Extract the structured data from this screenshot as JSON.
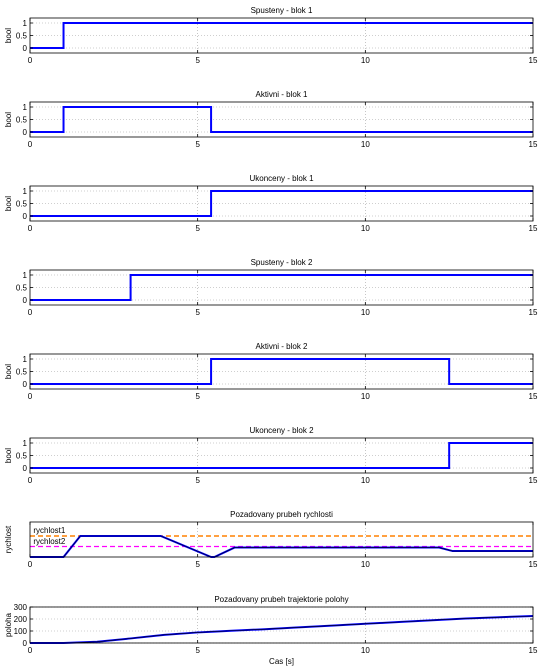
{
  "chart_data": [
    {
      "type": "line",
      "title": "Spusteny - blok 1",
      "ylabel": "bool",
      "xlabel": "",
      "xlim": [
        0,
        15
      ],
      "ylim": [
        -0.2,
        1.2
      ],
      "xticks": [
        "0",
        "5",
        "10",
        "15"
      ],
      "yticks": [
        "0",
        "0.5",
        "1"
      ],
      "grid": true,
      "series": [
        {
          "color": "#0000ff",
          "dash": "",
          "width": 2,
          "x": [
            0,
            1,
            1,
            15
          ],
          "y": [
            0,
            0,
            1,
            1
          ]
        }
      ]
    },
    {
      "type": "line",
      "title": "Aktivni - blok 1",
      "ylabel": "bool",
      "xlabel": "",
      "xlim": [
        0,
        15
      ],
      "ylim": [
        -0.2,
        1.2
      ],
      "xticks": [
        "0",
        "5",
        "10",
        "15"
      ],
      "yticks": [
        "0",
        "0.5",
        "1"
      ],
      "grid": true,
      "series": [
        {
          "color": "#0000ff",
          "dash": "",
          "width": 2,
          "x": [
            0,
            1,
            1,
            5.4,
            5.4,
            15
          ],
          "y": [
            0,
            0,
            1,
            1,
            0,
            0
          ]
        }
      ]
    },
    {
      "type": "line",
      "title": "Ukonceny - blok 1",
      "ylabel": "bool",
      "xlabel": "",
      "xlim": [
        0,
        15
      ],
      "ylim": [
        -0.2,
        1.2
      ],
      "xticks": [
        "0",
        "5",
        "10",
        "15"
      ],
      "yticks": [
        "0",
        "0.5",
        "1"
      ],
      "grid": true,
      "series": [
        {
          "color": "#0000ff",
          "dash": "",
          "width": 2,
          "x": [
            0,
            5.4,
            5.4,
            15
          ],
          "y": [
            0,
            0,
            1,
            1
          ]
        }
      ]
    },
    {
      "type": "line",
      "title": "Spusteny - blok 2",
      "ylabel": "",
      "xlabel": "",
      "xlim": [
        0,
        15
      ],
      "ylim": [
        -0.2,
        1.2
      ],
      "xticks": [
        "0",
        "5",
        "10",
        "15"
      ],
      "yticks": [
        "0",
        "0.5",
        "1"
      ],
      "grid": true,
      "series": [
        {
          "color": "#0000ff",
          "dash": "",
          "width": 2,
          "x": [
            0,
            3,
            3,
            15
          ],
          "y": [
            0,
            0,
            1,
            1
          ]
        }
      ]
    },
    {
      "type": "line",
      "title": "Aktivni - blok 2",
      "ylabel": "bool",
      "xlabel": "",
      "xlim": [
        0,
        15
      ],
      "ylim": [
        -0.2,
        1.2
      ],
      "xticks": [
        "0",
        "5",
        "10",
        "15"
      ],
      "yticks": [
        "0",
        "0.5",
        "1"
      ],
      "grid": true,
      "series": [
        {
          "color": "#0000ff",
          "dash": "",
          "width": 2,
          "x": [
            0,
            5.4,
            5.4,
            12.5,
            12.5,
            15
          ],
          "y": [
            0,
            0,
            1,
            1,
            0,
            0
          ]
        }
      ]
    },
    {
      "type": "line",
      "title": "Ukonceny - blok 2",
      "ylabel": "bool",
      "xlabel": "",
      "xlim": [
        0,
        15
      ],
      "ylim": [
        -0.2,
        1.2
      ],
      "xticks": [
        "0",
        "5",
        "10",
        "15"
      ],
      "yticks": [
        "0",
        "0.5",
        "1"
      ],
      "grid": true,
      "series": [
        {
          "color": "#0000ff",
          "dash": "",
          "width": 2,
          "x": [
            0,
            12.5,
            12.5,
            15
          ],
          "y": [
            0,
            0,
            1,
            1
          ]
        }
      ]
    },
    {
      "type": "line",
      "title": "Pozadovany prubeh rychlosti",
      "ylabel": "rychlost",
      "xlabel": "",
      "xlim": [
        0,
        15
      ],
      "ylim": [
        0,
        1
      ],
      "xticks": [
        "0",
        "5",
        "10",
        "15"
      ],
      "yticks": [],
      "grid": true,
      "annotations": [
        {
          "text": "rychlost1",
          "x": 0.1,
          "y": 0.68
        },
        {
          "text": "rychlost2",
          "x": 0.1,
          "y": 0.37
        }
      ],
      "series": [
        {
          "color": "#ff8000",
          "dash": "5,3",
          "width": 1.5,
          "x": [
            0,
            15
          ],
          "y": [
            0.6,
            0.6
          ]
        },
        {
          "color": "#ff00ff",
          "dash": "5,3",
          "width": 1.2,
          "x": [
            0,
            15
          ],
          "y": [
            0.3,
            0.3
          ]
        },
        {
          "color": "#0000ff",
          "dash": "",
          "width": 2,
          "x": [
            0,
            1,
            1.5,
            3.9,
            5.4,
            5.5,
            6.1,
            12.2,
            12.6,
            15
          ],
          "y": [
            0,
            0,
            0.6,
            0.6,
            0.0,
            0.0,
            0.27,
            0.27,
            0.17,
            0.17
          ]
        },
        {
          "color": "#000000",
          "dash": "",
          "width": 0.6,
          "x": [
            0,
            1,
            1.5,
            3.9,
            5.4,
            5.5,
            6.1,
            12.2,
            12.6,
            15
          ],
          "y": [
            0,
            0,
            0.6,
            0.6,
            0.0,
            0.0,
            0.27,
            0.27,
            0.17,
            0.17
          ]
        }
      ]
    },
    {
      "type": "line",
      "title": "Pozadovany prubeh trajektorie polohy",
      "ylabel": "poloha",
      "xlabel": "Cas [s]",
      "xlim": [
        0,
        15
      ],
      "ylim": [
        0,
        300
      ],
      "xticks": [
        "0",
        "5",
        "10",
        "15"
      ],
      "yticks": [
        "0",
        "100",
        "200",
        "300"
      ],
      "grid": true,
      "series": [
        {
          "color": "#0000ff",
          "dash": "",
          "width": 2,
          "x": [
            0,
            1,
            2,
            3,
            4,
            5,
            5.5,
            6,
            7,
            8,
            9,
            10,
            11,
            12,
            12.5,
            13,
            14,
            15
          ],
          "y": [
            0,
            0,
            10,
            38,
            68,
            88,
            95,
            102,
            115,
            130,
            145,
            160,
            175,
            190,
            197,
            204,
            215,
            225
          ]
        },
        {
          "color": "#000000",
          "dash": "",
          "width": 0.6,
          "x": [
            0,
            1,
            2,
            3,
            4,
            5,
            5.5,
            6,
            7,
            8,
            9,
            10,
            11,
            12,
            12.5,
            13,
            14,
            15
          ],
          "y": [
            0,
            0,
            10,
            38,
            68,
            88,
            95,
            102,
            115,
            130,
            145,
            160,
            175,
            190,
            197,
            204,
            215,
            225
          ]
        }
      ]
    }
  ]
}
